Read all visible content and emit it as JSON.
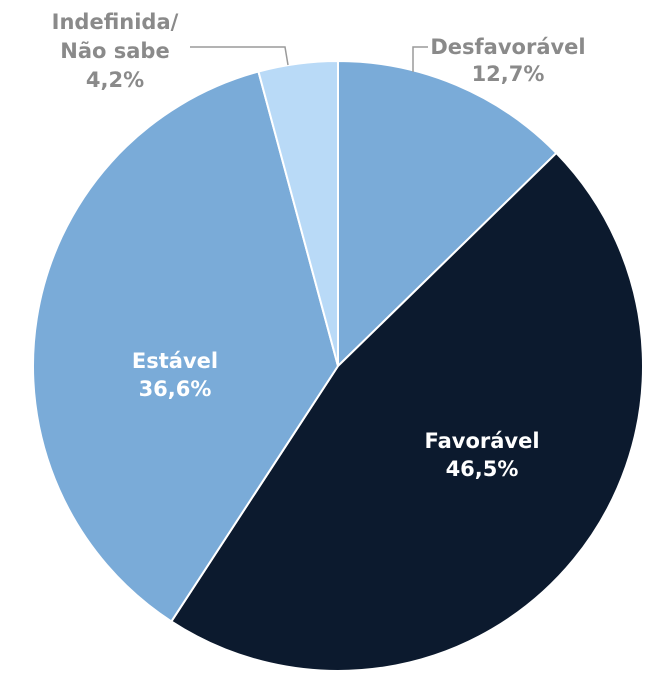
{
  "chart_data": {
    "type": "pie",
    "categories": [
      "Desfavorável",
      "Favorável",
      "Estável",
      "Indefinida/\nNão sabe"
    ],
    "values": [
      12.7,
      46.5,
      36.6,
      4.2
    ],
    "value_labels": [
      "12,7%",
      "46,5%",
      "36,6%",
      "4,2%"
    ],
    "colors": [
      "#7aabd8",
      "#0c1a2e",
      "#7aabd8",
      "#b9daf7"
    ]
  }
}
